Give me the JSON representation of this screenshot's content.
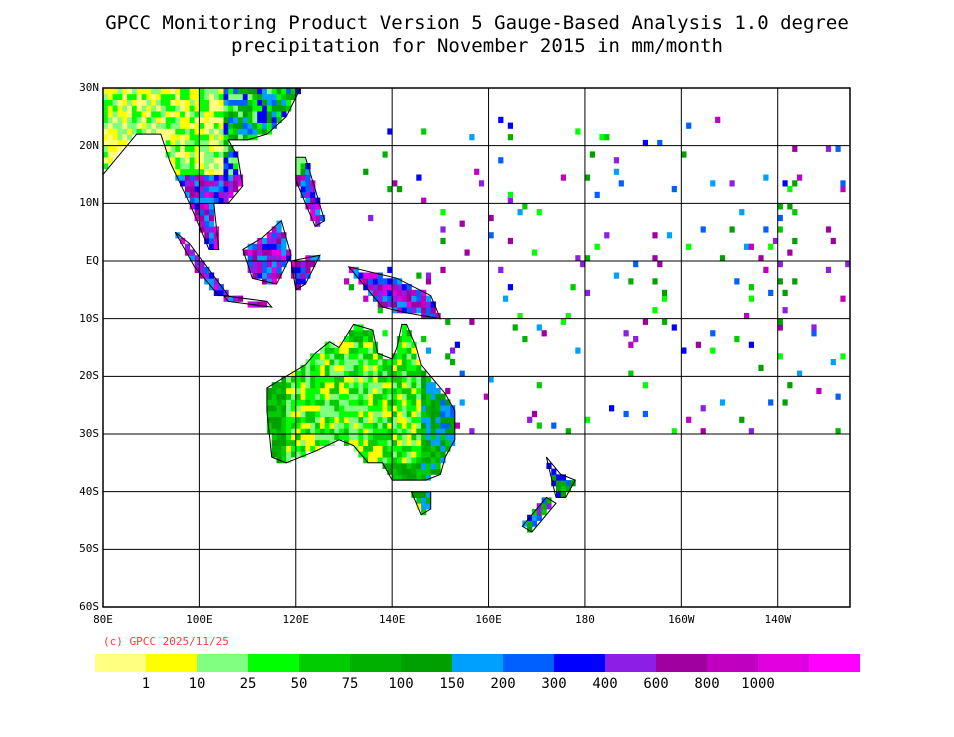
{
  "title_line1": "GPCC Monitoring Product Version 5 Gauge-Based Analysis 1.0 degree",
  "title_line2": "precipitation for November  2015 in mm/month",
  "copyright": "(c) GPCC 2025/11/25",
  "map": {
    "lon_range": [
      80,
      235
    ],
    "lat_range": [
      -60,
      30
    ],
    "lat_ticks": [
      {
        "lat": 30,
        "label": "30N"
      },
      {
        "lat": 20,
        "label": "20N"
      },
      {
        "lat": 10,
        "label": "10N"
      },
      {
        "lat": 0,
        "label": "EQ"
      },
      {
        "lat": -10,
        "label": "10S"
      },
      {
        "lat": -20,
        "label": "20S"
      },
      {
        "lat": -30,
        "label": "30S"
      },
      {
        "lat": -40,
        "label": "40S"
      },
      {
        "lat": -50,
        "label": "50S"
      },
      {
        "lat": -60,
        "label": "60S"
      }
    ],
    "lon_ticks": [
      {
        "lon": 80,
        "label": "80E"
      },
      {
        "lon": 100,
        "label": "100E"
      },
      {
        "lon": 120,
        "label": "120E"
      },
      {
        "lon": 140,
        "label": "140E"
      },
      {
        "lon": 160,
        "label": "160E"
      },
      {
        "lon": 180,
        "label": "180"
      },
      {
        "lon": 200,
        "label": "160W"
      },
      {
        "lon": 220,
        "label": "140W"
      }
    ],
    "grid": true
  },
  "legend": {
    "colors": [
      "#ffff80",
      "#ffff00",
      "#80ff80",
      "#00ff00",
      "#00cc00",
      "#00b000",
      "#00a000",
      "#00a0ff",
      "#0060ff",
      "#0000ff",
      "#8c1ee6",
      "#a000a0",
      "#c000c0",
      "#e000e0",
      "#ff00ff"
    ],
    "labels": [
      "1",
      "10",
      "25",
      "50",
      "75",
      "100",
      "150",
      "200",
      "300",
      "400",
      "600",
      "800",
      "1000"
    ]
  }
}
